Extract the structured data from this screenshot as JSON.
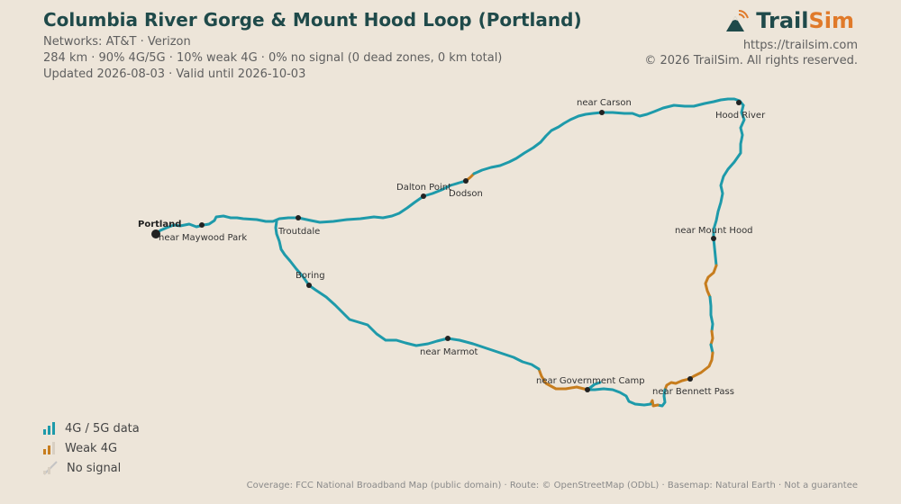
{
  "header": {
    "title": "Columbia River Gorge & Mount Hood Loop (Portland)",
    "networks": "Networks: AT&T · Verizon",
    "stats": "284 km · 90% 4G/5G · 10% weak 4G · 0% no signal (0 dead zones, 0 km total)",
    "updated": "Updated 2026-08-03 · Valid until 2026-10-03"
  },
  "brand": {
    "name_part1": "Trail",
    "name_part2": "Sim",
    "url": "https://trailsim.com",
    "copyright": "© 2026 TrailSim. All rights reserved.",
    "icon": "mountain-signal-logo"
  },
  "places": {
    "portland": "Portland",
    "maywood": "near Maywood Park",
    "troutdale": "Troutdale",
    "dalton": "Dalton Point",
    "dodson": "Dodson",
    "carson": "near Carson",
    "hood_river": "Hood River",
    "mount_hood": "near Mount Hood",
    "boring": "Boring",
    "marmot": "near Marmot",
    "gov_camp": "near Government Camp",
    "bennett": "near Bennett Pass"
  },
  "legend": {
    "good": "4G / 5G data",
    "weak": "Weak 4G",
    "none": "No signal"
  },
  "colors": {
    "good": "#1e9aaa",
    "weak": "#c77d1e",
    "none": "#c4c4c4",
    "title": "#1f4a4a",
    "accent": "#e07a2a",
    "background": "#ede5d9"
  },
  "footer": "Coverage: FCC National Broadband Map (public domain) · Route: © OpenStreetMap (ODbL) · Basemap: Natural Earth · Not a guarantee"
}
